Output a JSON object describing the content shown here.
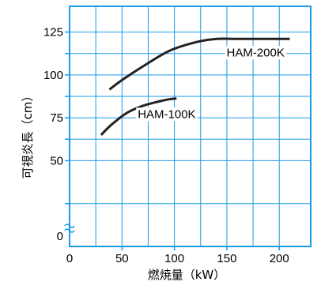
{
  "chart_data": {
    "type": "line",
    "xlabel": "燃焼量（kW）",
    "ylabel": "可視炎長（cm）",
    "xlim": [
      0,
      230
    ],
    "ylim": [
      0,
      140
    ],
    "x_ticks": [
      "0",
      "50",
      "100",
      "150",
      "200"
    ],
    "y_ticks": [
      "0",
      "50",
      "75",
      "100",
      "125"
    ],
    "axis_break": "y between 0 and 50",
    "grid": true,
    "series": [
      {
        "name": "HAM-200K",
        "x": [
          38,
          50,
          70,
          95,
          120,
          140,
          160,
          180,
          200,
          210
        ],
        "y": [
          91.5,
          97,
          105,
          114,
          119,
          121,
          121,
          121,
          121,
          121
        ]
      },
      {
        "name": "HAM-100K",
        "x": [
          30,
          40,
          55,
          70,
          85,
          95,
          102
        ],
        "y": [
          65,
          71,
          78,
          82,
          84.5,
          85.8,
          86.3
        ]
      }
    ],
    "colors": {
      "grid": "#1a9be6",
      "frame": "#1a9be6",
      "line": "#222222",
      "break_mark": "#1a9be6"
    }
  }
}
